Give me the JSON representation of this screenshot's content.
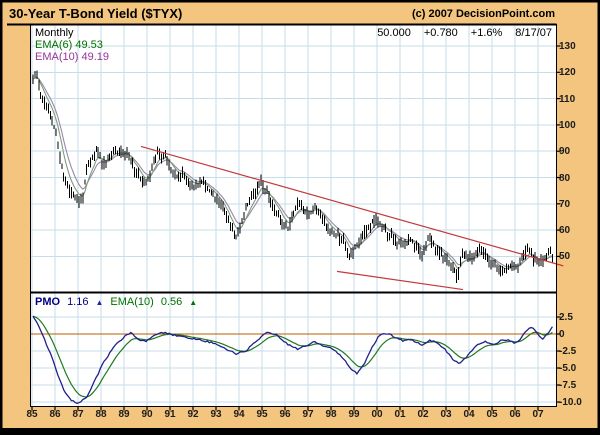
{
  "header": {
    "title": "30-Year T-Bond Yield ($TYX)",
    "copyright": "(c) 2007 DecisionPoint.com"
  },
  "price_panel": {
    "timeframe": "Monthly",
    "ema6_label": "EMA(6) 49.53",
    "ema10_label": "EMA(10) 49.19",
    "quote_last": "50.000",
    "quote_change": "+0.780",
    "quote_pct": "+1.6%",
    "quote_date": "8/17/07"
  },
  "pmo_panel": {
    "pmo_name": "PMO",
    "pmo_value": "1.16",
    "pmo_arrow": "▲",
    "ema_name": "EMA(10)",
    "ema_value": "0.56",
    "ema_arrow": "▲"
  },
  "colors": {
    "background": "#F3C57E",
    "panel_bg": "#FFFFFF",
    "grid": "#C6DEE8",
    "bar": "#000000",
    "ema6_line": "#7E9C7E",
    "ema10_line": "#9C87A9",
    "trendline": "#C23B3B",
    "zero_line": "#B85C00",
    "pmo_line": "#20208C",
    "pmo_ema_line": "#1F7A1F",
    "border": "#000000"
  },
  "chart_data": {
    "type": "bar",
    "title": "30-Year T-Bond Yield ($TYX)",
    "timeframe": "Monthly",
    "x_range": [
      1985.0,
      2007.583
    ],
    "years": [
      "85",
      "86",
      "87",
      "88",
      "89",
      "90",
      "91",
      "92",
      "93",
      "94",
      "95",
      "96",
      "97",
      "98",
      "99",
      "00",
      "01",
      "02",
      "03",
      "04",
      "05",
      "06",
      "07"
    ],
    "price_axis": {
      "ticks": [
        130,
        120,
        110,
        100,
        90,
        80,
        70,
        60,
        50
      ],
      "ylim": [
        36,
        138
      ]
    },
    "pmo_axis": {
      "ticks": [
        "2.5",
        "0",
        "-2.5",
        "-5.0",
        "-7.5",
        "-10.0"
      ],
      "values": [
        2.5,
        0,
        -2.5,
        -5.0,
        -7.5,
        -10.0
      ],
      "ylim": [
        -10.6,
        5.9
      ]
    },
    "price_monthly_anchors": [
      [
        1985.0,
        117.5
      ],
      [
        1985.17,
        119
      ],
      [
        1985.33,
        112
      ],
      [
        1985.58,
        107
      ],
      [
        1985.83,
        102
      ],
      [
        1986.0,
        97
      ],
      [
        1986.17,
        88
      ],
      [
        1986.33,
        80
      ],
      [
        1986.58,
        75
      ],
      [
        1986.83,
        72.5
      ],
      [
        1987.0,
        71
      ],
      [
        1987.17,
        73
      ],
      [
        1987.33,
        83
      ],
      [
        1987.58,
        87
      ],
      [
        1987.75,
        91
      ],
      [
        1987.83,
        89.5
      ],
      [
        1988.08,
        85.5
      ],
      [
        1988.33,
        88
      ],
      [
        1988.58,
        90.5
      ],
      [
        1988.83,
        89.5
      ],
      [
        1989.08,
        89.5
      ],
      [
        1989.33,
        84.5
      ],
      [
        1989.58,
        80.5
      ],
      [
        1989.83,
        78
      ],
      [
        1990.08,
        81
      ],
      [
        1990.25,
        86
      ],
      [
        1990.42,
        90.5
      ],
      [
        1990.58,
        87.5
      ],
      [
        1990.75,
        88.5
      ],
      [
        1991.0,
        83
      ],
      [
        1991.25,
        80
      ],
      [
        1991.5,
        81.5
      ],
      [
        1991.75,
        78.5
      ],
      [
        1992.08,
        77
      ],
      [
        1992.42,
        78.5
      ],
      [
        1992.75,
        74
      ],
      [
        1993.0,
        72
      ],
      [
        1993.33,
        67.5
      ],
      [
        1993.58,
        61.5
      ],
      [
        1993.79,
        57.5
      ],
      [
        1994.0,
        61
      ],
      [
        1994.25,
        69
      ],
      [
        1994.58,
        73.5
      ],
      [
        1994.88,
        79.5
      ],
      [
        1995.08,
        75.5
      ],
      [
        1995.42,
        69.5
      ],
      [
        1995.75,
        64.5
      ],
      [
        1996.04,
        60.5
      ],
      [
        1996.29,
        66
      ],
      [
        1996.5,
        70
      ],
      [
        1996.79,
        68
      ],
      [
        1997.04,
        66.5
      ],
      [
        1997.29,
        69.5
      ],
      [
        1997.58,
        64.5
      ],
      [
        1997.92,
        59.5
      ],
      [
        1998.21,
        58.5
      ],
      [
        1998.5,
        56.5
      ],
      [
        1998.79,
        49.5
      ],
      [
        1999.04,
        53.5
      ],
      [
        1999.33,
        58
      ],
      [
        1999.62,
        61
      ],
      [
        1999.92,
        64.5
      ],
      [
        2000.17,
        61.5
      ],
      [
        2000.42,
        58.5
      ],
      [
        2000.67,
        57
      ],
      [
        2000.92,
        54.5
      ],
      [
        2001.17,
        55.5
      ],
      [
        2001.42,
        56.5
      ],
      [
        2001.67,
        54
      ],
      [
        2001.88,
        50
      ],
      [
        2002.08,
        55
      ],
      [
        2002.25,
        57
      ],
      [
        2002.5,
        53.5
      ],
      [
        2002.83,
        49.5
      ],
      [
        2003.08,
        48.5
      ],
      [
        2003.29,
        45
      ],
      [
        2003.46,
        42
      ],
      [
        2003.67,
        50.5
      ],
      [
        2003.92,
        50
      ],
      [
        2004.08,
        48.5
      ],
      [
        2004.38,
        53
      ],
      [
        2004.67,
        50.5
      ],
      [
        2004.92,
        48
      ],
      [
        2005.17,
        46
      ],
      [
        2005.46,
        44
      ],
      [
        2005.67,
        45.5
      ],
      [
        2005.92,
        47
      ],
      [
        2006.08,
        46.5
      ],
      [
        2006.33,
        51
      ],
      [
        2006.5,
        53
      ],
      [
        2006.75,
        49.5
      ],
      [
        2006.96,
        47
      ],
      [
        2007.17,
        48.5
      ],
      [
        2007.33,
        50
      ],
      [
        2007.46,
        52.5
      ],
      [
        2007.58,
        50.0
      ]
    ],
    "trendlines": [
      {
        "x1": 1989.74,
        "v1": 91.8,
        "x2": 2008.1,
        "v2": 46.4
      },
      {
        "x1": 1998.26,
        "v1": 44.3,
        "x2": 2003.74,
        "v2": 37.4
      }
    ],
    "pmo_anchors": [
      [
        1985.0,
        2.6
      ],
      [
        1985.25,
        1.2
      ],
      [
        1985.5,
        -0.8
      ],
      [
        1985.75,
        -2.8
      ],
      [
        1986.0,
        -5.2
      ],
      [
        1986.33,
        -8.2
      ],
      [
        1986.67,
        -9.8
      ],
      [
        1987.0,
        -10.2
      ],
      [
        1987.33,
        -9.3
      ],
      [
        1987.67,
        -7.0
      ],
      [
        1988.0,
        -4.6
      ],
      [
        1988.5,
        -1.9
      ],
      [
        1989.0,
        -0.3
      ],
      [
        1989.25,
        0.2
      ],
      [
        1989.58,
        -0.8
      ],
      [
        1989.92,
        -1.1
      ],
      [
        1990.33,
        0.0
      ],
      [
        1990.67,
        0.2
      ],
      [
        1991.17,
        -0.2
      ],
      [
        1991.75,
        -0.6
      ],
      [
        1992.33,
        -0.9
      ],
      [
        1992.83,
        -1.3
      ],
      [
        1993.33,
        -2.1
      ],
      [
        1993.83,
        -2.9
      ],
      [
        1994.25,
        -2.5
      ],
      [
        1994.75,
        -0.9
      ],
      [
        1995.17,
        0.3
      ],
      [
        1995.58,
        -0.1
      ],
      [
        1996.08,
        -1.5
      ],
      [
        1996.5,
        -2.2
      ],
      [
        1996.92,
        -1.7
      ],
      [
        1997.25,
        -1.1
      ],
      [
        1997.58,
        -1.8
      ],
      [
        1998.0,
        -2.1
      ],
      [
        1998.42,
        -3.3
      ],
      [
        1998.83,
        -5.2
      ],
      [
        1999.08,
        -5.8
      ],
      [
        1999.42,
        -4.3
      ],
      [
        1999.75,
        -1.9
      ],
      [
        2000.08,
        -0.1
      ],
      [
        2000.42,
        0.1
      ],
      [
        2000.75,
        -0.5
      ],
      [
        2001.08,
        -1.0
      ],
      [
        2001.33,
        -0.7
      ],
      [
        2001.67,
        -1.2
      ],
      [
        2001.92,
        -1.6
      ],
      [
        2002.25,
        -0.9
      ],
      [
        2002.58,
        -1.3
      ],
      [
        2002.92,
        -2.3
      ],
      [
        2003.33,
        -4.0
      ],
      [
        2003.58,
        -4.3
      ],
      [
        2003.92,
        -3.1
      ],
      [
        2004.33,
        -1.5
      ],
      [
        2004.67,
        -1.1
      ],
      [
        2005.0,
        -1.6
      ],
      [
        2005.33,
        -1.0
      ],
      [
        2005.67,
        -0.9
      ],
      [
        2005.92,
        -1.3
      ],
      [
        2006.17,
        -0.8
      ],
      [
        2006.5,
        0.7
      ],
      [
        2006.75,
        0.9
      ],
      [
        2007.0,
        -0.3
      ],
      [
        2007.17,
        -0.7
      ],
      [
        2007.42,
        0.3
      ],
      [
        2007.58,
        1.16
      ]
    ],
    "pmo_ema_note": "EMA(10) of PMO, ends at 0.56"
  }
}
